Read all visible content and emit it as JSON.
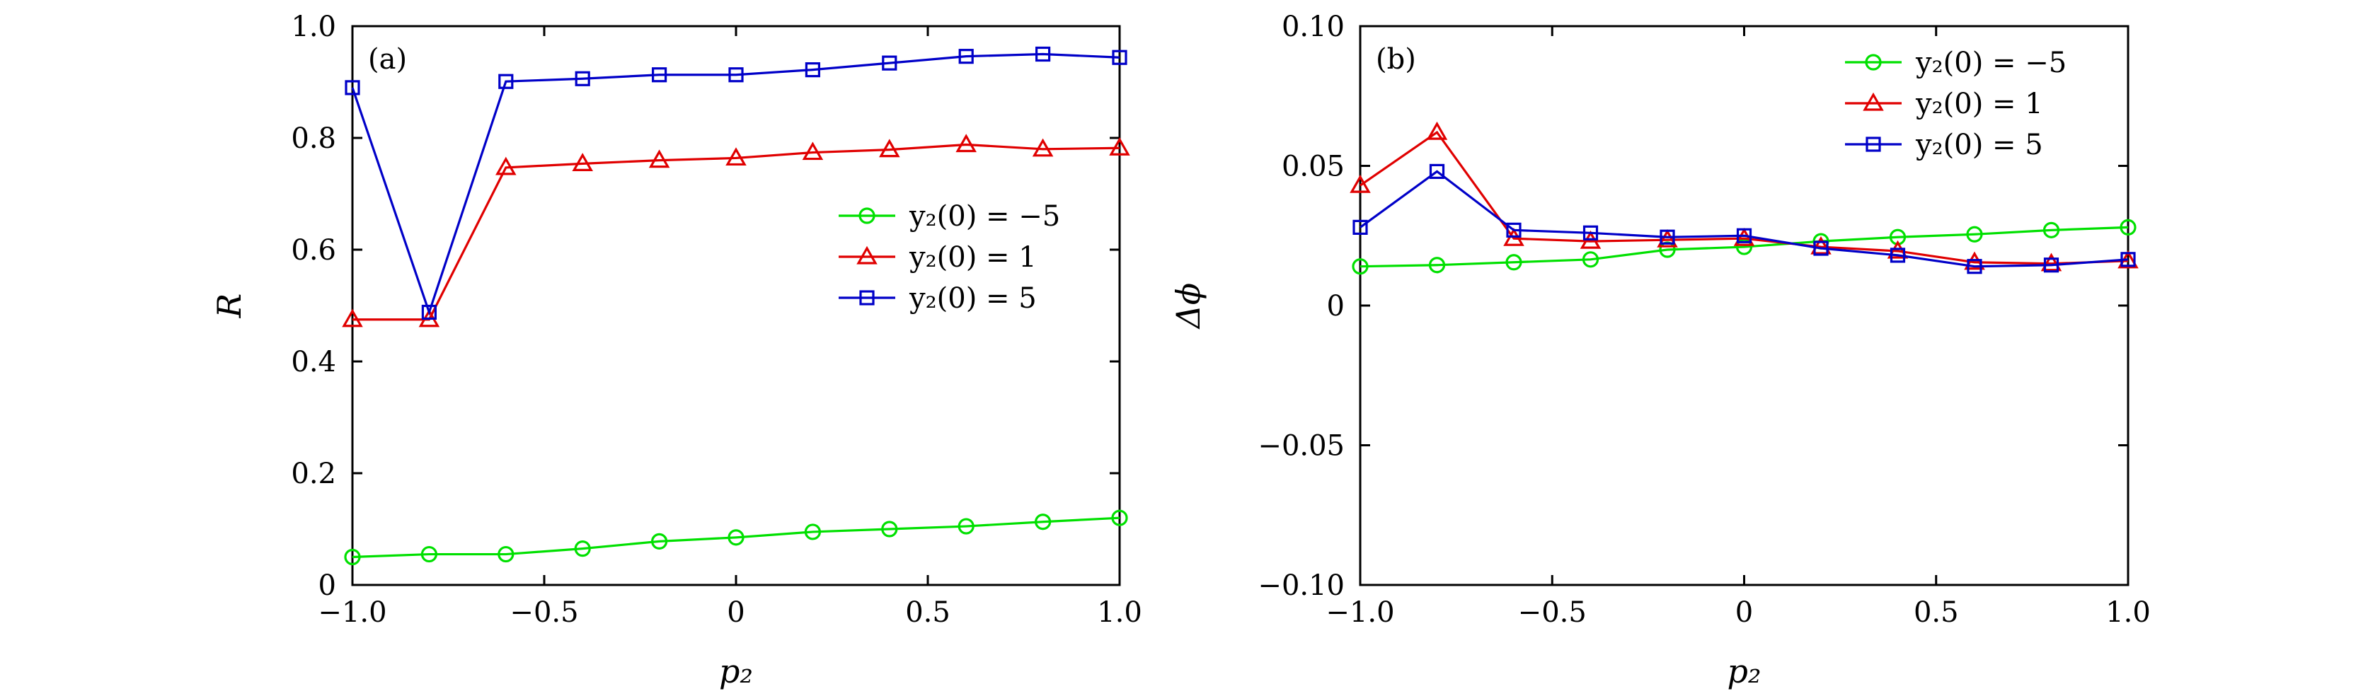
{
  "chart_data": [
    {
      "type": "line",
      "panel_label": "(a)",
      "xlabel": "p₂",
      "ylabel": "R",
      "xlim": [
        -1.0,
        1.0
      ],
      "ylim": [
        0,
        1.0
      ],
      "x": [
        -1.0,
        -0.8,
        -0.6,
        -0.4,
        -0.2,
        0,
        0.2,
        0.4,
        0.6,
        0.8,
        1.0
      ],
      "xticks": [
        -1.0,
        -0.5,
        0,
        0.5,
        1.0
      ],
      "xtick_labels": [
        "−1.0",
        "−0.5",
        "0",
        "0.5",
        "1.0"
      ],
      "yticks": [
        0,
        0.2,
        0.4,
        0.6,
        0.8,
        1.0
      ],
      "ytick_labels": [
        "0",
        "0.2",
        "0.4",
        "0.6",
        "0.8",
        "1.0"
      ],
      "legend_position": "center-right",
      "series": [
        {
          "name": "y₂(0) = −5",
          "color": "#00e000",
          "marker": "circle",
          "values": [
            0.05,
            0.055,
            0.055,
            0.065,
            0.078,
            0.085,
            0.095,
            0.1,
            0.105,
            0.113,
            0.12
          ]
        },
        {
          "name": "y₂(0) = 1",
          "color": "#e00000",
          "marker": "triangle",
          "values": [
            0.475,
            0.475,
            0.747,
            0.754,
            0.76,
            0.764,
            0.774,
            0.779,
            0.788,
            0.78,
            0.782
          ]
        },
        {
          "name": "y₂(0) = 5",
          "color": "#0000c8",
          "marker": "square",
          "values": [
            0.89,
            0.488,
            0.901,
            0.906,
            0.913,
            0.913,
            0.922,
            0.934,
            0.946,
            0.95,
            0.944
          ]
        }
      ]
    },
    {
      "type": "line",
      "panel_label": "(b)",
      "xlabel": "p₂",
      "ylabel": "Δϕ",
      "xlim": [
        -1.0,
        1.0
      ],
      "ylim": [
        -0.1,
        0.1
      ],
      "x": [
        -1.0,
        -0.8,
        -0.6,
        -0.4,
        -0.2,
        0,
        0.2,
        0.4,
        0.6,
        0.8,
        1.0
      ],
      "xticks": [
        -1.0,
        -0.5,
        0,
        0.5,
        1.0
      ],
      "xtick_labels": [
        "−1.0",
        "−0.5",
        "0",
        "0.5",
        "1.0"
      ],
      "yticks": [
        -0.1,
        -0.05,
        0,
        0.05,
        0.1
      ],
      "ytick_labels": [
        "−0.10",
        "−0.05",
        "0",
        "0.05",
        "0.10"
      ],
      "legend_position": "top-right",
      "series": [
        {
          "name": "y₂(0) = −5",
          "color": "#00e000",
          "marker": "circle",
          "values": [
            0.014,
            0.0145,
            0.0155,
            0.0165,
            0.02,
            0.021,
            0.023,
            0.0245,
            0.0255,
            0.027,
            0.028
          ]
        },
        {
          "name": "y₂(0) = 1",
          "color": "#e00000",
          "marker": "triangle",
          "values": [
            0.043,
            0.062,
            0.024,
            0.023,
            0.0235,
            0.024,
            0.021,
            0.0195,
            0.0155,
            0.015,
            0.016
          ]
        },
        {
          "name": "y₂(0) = 5",
          "color": "#0000c8",
          "marker": "square",
          "values": [
            0.028,
            0.048,
            0.027,
            0.026,
            0.0245,
            0.025,
            0.0205,
            0.018,
            0.014,
            0.0145,
            0.0165
          ]
        }
      ]
    }
  ]
}
